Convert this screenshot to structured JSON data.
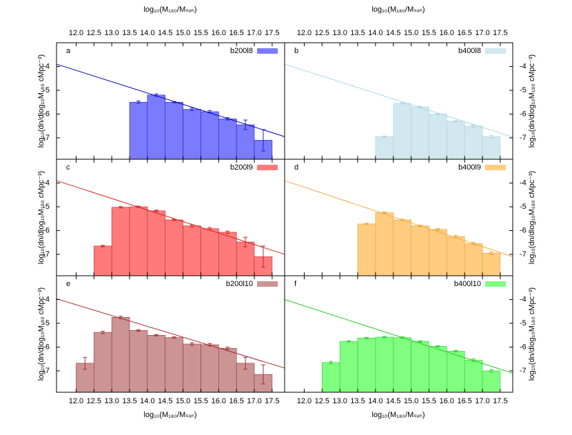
{
  "axes": {
    "x_label": "log₁₀(M₁₈₀/Mₛᵤₙ)",
    "y_label": "log₁₀(dn/dlog₁₀M₁₈₀ cMpc⁻³)",
    "xlim": [
      11.45,
      17.85
    ],
    "ylim": [
      -7.9,
      -3.0
    ],
    "xticks": [
      {
        "value": 12,
        "label": "12.0"
      },
      {
        "value": 12.5,
        "label": "12.5"
      },
      {
        "value": 13,
        "label": "13.0"
      },
      {
        "value": 13.5,
        "label": "13.5"
      },
      {
        "value": 14,
        "label": "14.0"
      },
      {
        "value": 14.5,
        "label": "14.5"
      },
      {
        "value": 15,
        "label": "15.0"
      },
      {
        "value": 15.5,
        "label": "15.5"
      },
      {
        "value": 16,
        "label": "16.0"
      },
      {
        "value": 16.5,
        "label": "16.5"
      },
      {
        "value": 17,
        "label": "17.0"
      },
      {
        "value": 17.5,
        "label": "17.5"
      }
    ],
    "yticks": [
      -4,
      -5,
      -6,
      -7
    ]
  },
  "chart_data": [
    {
      "type": "histogram",
      "panel_label": "a",
      "legend": "b200l8",
      "color": "#7b7bff",
      "edge_color": "#2222cc",
      "bins": [
        13.5,
        14,
        14.5,
        15,
        15.5,
        16,
        16.5,
        17,
        17.5
      ],
      "values": [
        -5.5,
        -5.2,
        -5.5,
        -5.8,
        -5.9,
        -6.2,
        -6.45,
        -7.1
      ],
      "errors": [
        0.05,
        0.05,
        0.03,
        0.05,
        0.05,
        0.05,
        0.2,
        0.45
      ],
      "fit": {
        "x": [
          11.45,
          17.85
        ],
        "y": [
          -3.9,
          -6.95
        ],
        "color": "#0000bb"
      }
    },
    {
      "type": "histogram",
      "panel_label": "b",
      "legend": "b400l8",
      "color": "#d2e8ef",
      "edge_color": "#a8d4e2",
      "bins": [
        14,
        14.5,
        15,
        15.5,
        16,
        16.5,
        17,
        17.5
      ],
      "values": [
        -6.95,
        -5.55,
        -5.7,
        -6.0,
        -6.3,
        -6.5,
        -6.95
      ],
      "errors": [
        0.03,
        0.03,
        0.03,
        0.03,
        0.03,
        0.05,
        0.05
      ],
      "fit": {
        "x": [
          11.45,
          17.85
        ],
        "y": [
          -3.9,
          -6.97
        ],
        "color": "#a8d8e8"
      }
    },
    {
      "type": "histogram",
      "panel_label": "c",
      "legend": "b200l9",
      "color": "#ff7b7b",
      "edge_color": "#cc2222",
      "bins": [
        12.5,
        13,
        13.5,
        14,
        14.5,
        15,
        15.5,
        16,
        16.5,
        17,
        17.5
      ],
      "values": [
        -6.65,
        -5.02,
        -5.0,
        -5.17,
        -5.55,
        -5.8,
        -5.92,
        -6.07,
        -6.48,
        -7.1
      ],
      "errors": [
        0.03,
        0.03,
        0.03,
        0.03,
        0.03,
        0.05,
        0.05,
        0.05,
        0.2,
        0.45
      ],
      "fit": {
        "x": [
          11.45,
          17.85
        ],
        "y": [
          -3.9,
          -7.0
        ],
        "color": "#dd2222"
      }
    },
    {
      "type": "histogram",
      "panel_label": "d",
      "legend": "b400l9",
      "color": "#ffcc80",
      "edge_color": "#f0a030",
      "bins": [
        13.5,
        14,
        14.5,
        15,
        15.5,
        16,
        16.5,
        17,
        17.5
      ],
      "values": [
        -5.72,
        -5.25,
        -5.55,
        -5.8,
        -5.95,
        -6.25,
        -6.55,
        -6.95
      ],
      "errors": [
        0.03,
        0.03,
        0.03,
        0.03,
        0.03,
        0.05,
        0.05,
        0.05
      ],
      "fit": {
        "x": [
          11.45,
          17.85
        ],
        "y": [
          -3.9,
          -7.1
        ],
        "color": "#ffaa33"
      }
    },
    {
      "type": "histogram",
      "panel_label": "e",
      "legend": "b200l10",
      "color": "#cc9494",
      "edge_color": "#993333",
      "bins": [
        12,
        12.5,
        13,
        13.5,
        14,
        14.5,
        15,
        15.5,
        16,
        16.5,
        17,
        17.5
      ],
      "values": [
        -6.68,
        -5.38,
        -4.75,
        -5.3,
        -5.5,
        -5.6,
        -5.87,
        -5.9,
        -6.05,
        -6.68,
        -7.15
      ],
      "errors": [
        0.25,
        0.05,
        0.05,
        0.03,
        0.03,
        0.03,
        0.05,
        0.05,
        0.05,
        0.25,
        0.4
      ],
      "fit": {
        "x": [
          11.45,
          17.85
        ],
        "y": [
          -3.97,
          -6.88
        ],
        "color": "#aa2222"
      }
    },
    {
      "type": "histogram",
      "panel_label": "f",
      "legend": "b400l10",
      "color": "#80ff80",
      "edge_color": "#33cc33",
      "bins": [
        12.5,
        13,
        13.5,
        14,
        14.5,
        15,
        15.5,
        16,
        16.5,
        17,
        17.5
      ],
      "values": [
        -6.65,
        -5.76,
        -5.62,
        -5.58,
        -5.6,
        -5.76,
        -5.97,
        -6.17,
        -6.55,
        -7.0
      ],
      "errors": [
        0.05,
        0.03,
        0.03,
        0.03,
        0.03,
        0.03,
        0.03,
        0.03,
        0.05,
        0.05
      ],
      "fit": {
        "x": [
          11.45,
          17.85
        ],
        "y": [
          -4.0,
          -7.1
        ],
        "color": "#22cc22"
      }
    }
  ]
}
